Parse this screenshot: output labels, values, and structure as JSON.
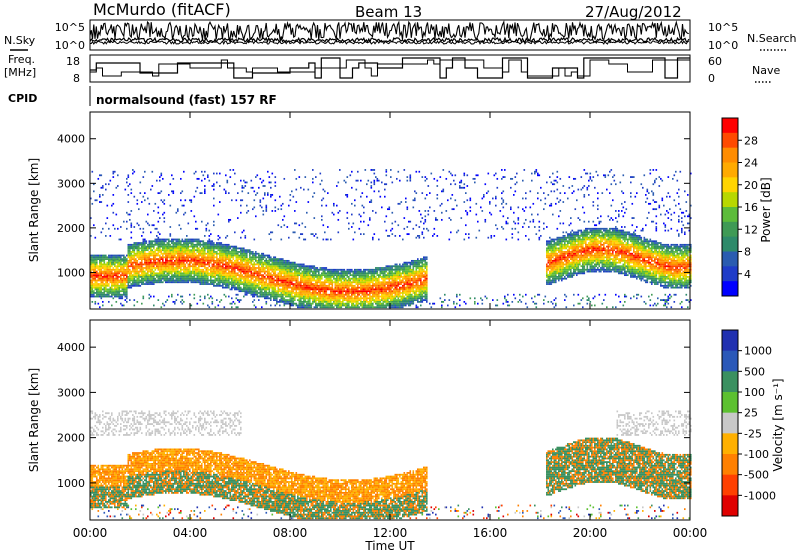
{
  "header": {
    "station": "McMurdo (fitACF)",
    "beam": "Beam 13",
    "date": "27/Aug/2012"
  },
  "aux": {
    "nsky_label": "N.Sky",
    "nsearch_label": "N.Search",
    "freq_label_1": "Freq.",
    "freq_label_2": "[MHz]",
    "nave_label": "Nave",
    "cpid_label": "CPID",
    "cpid_value": "normalsound (fast) 157 RF",
    "noise_ticks_left": [
      "10^5",
      "10^0"
    ],
    "noise_ticks_right": [
      "10^5",
      "10^0"
    ],
    "freq_ticks": [
      "18",
      "8"
    ],
    "nave_ticks": [
      "60",
      "0"
    ]
  },
  "chart_data": [
    {
      "type": "heatmap",
      "name": "power",
      "ylabel": "Slant Range [km]",
      "ylim": [
        180,
        4600
      ],
      "yticks": [
        "4000",
        "3000",
        "2000",
        "1000"
      ],
      "ytick_values": [
        4000,
        3000,
        2000,
        1000
      ],
      "colorbar": {
        "label": "Power [dB]",
        "ticks": [
          "28",
          "24",
          "20",
          "16",
          "12",
          "8",
          "4"
        ],
        "colors": [
          "#ff0000",
          "#ff4a00",
          "#ff8c00",
          "#ffaa00",
          "#ffd400",
          "#b8d800",
          "#5cbc3a",
          "#3f9a55",
          "#2e8a6a",
          "#2a5cb0",
          "#1f3cc8",
          "#0000ff"
        ]
      }
    },
    {
      "type": "heatmap",
      "name": "velocity",
      "ylabel": "Slant Range [km]",
      "ylim": [
        180,
        4600
      ],
      "yticks": [
        "4000",
        "3000",
        "2000",
        "1000"
      ],
      "ytick_values": [
        4000,
        3000,
        2000,
        1000
      ],
      "colorbar": {
        "label": "Velocity [m s⁻¹]",
        "ticks": [
          "1000",
          "500",
          "100",
          "25",
          "-25",
          "-100",
          "-500",
          "-1000"
        ],
        "colors": [
          "#2030b0",
          "#2a58b8",
          "#3a9060",
          "#5cc030",
          "#c8c8c8",
          "#ffb000",
          "#ff8000",
          "#ff4000",
          "#e00000"
        ]
      }
    }
  ],
  "xaxis": {
    "label": "Time UT",
    "ticks": [
      "00:00",
      "04:00",
      "08:00",
      "12:00",
      "16:00",
      "20:00",
      "00:00"
    ],
    "tick_hours": [
      0,
      4,
      8,
      12,
      16,
      20,
      24
    ]
  }
}
